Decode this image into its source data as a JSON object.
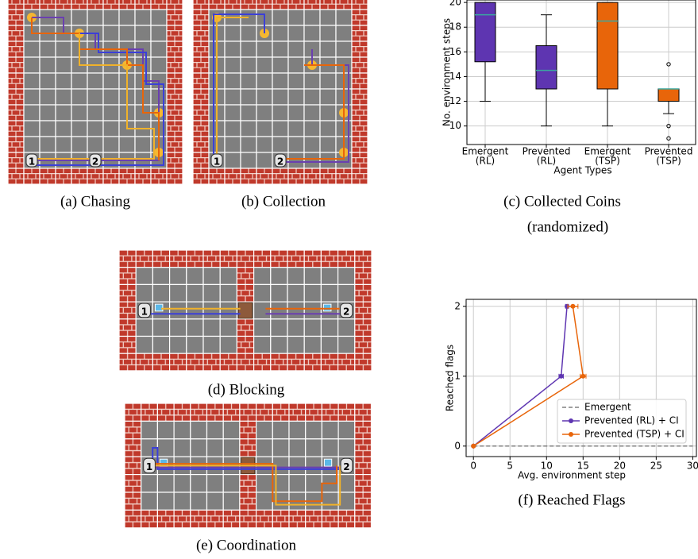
{
  "agent_ids": [
    "1",
    "2"
  ],
  "captions": {
    "a": "(a) Chasing",
    "b": "(b) Collection",
    "c": [
      "(c) Collected Coins",
      "(randomized)"
    ],
    "d": "(d) Blocking",
    "e": "(e) Coordination",
    "f": "(f) Reached Flags"
  },
  "chart_data": [
    {
      "type": "box",
      "ylabel": "No. environment steps",
      "xlabel": "Agent Types",
      "categories": [
        [
          "Emergent",
          "(RL)"
        ],
        [
          "Prevented",
          "(RL)"
        ],
        [
          "Emergent",
          "(TSP)"
        ],
        [
          "Prevented",
          "(TSP)"
        ]
      ],
      "colors": [
        "#5e35b1",
        "#5e35b1",
        "#e8650a",
        "#e8650a"
      ],
      "median_color": "#3aa8a0",
      "boxes": [
        {
          "whislo": 12,
          "q1": 15.2,
          "med": 19,
          "q3": 20,
          "whishi": 20,
          "fliers": []
        },
        {
          "whislo": 10,
          "q1": 13,
          "med": 14.5,
          "q3": 16.5,
          "whishi": 19,
          "fliers": []
        },
        {
          "whislo": 10,
          "q1": 13,
          "med": 18.5,
          "q3": 20,
          "whishi": 20,
          "fliers": []
        },
        {
          "whislo": 11,
          "q1": 12,
          "med": 13,
          "q3": 13,
          "whishi": 13,
          "fliers": [
            15,
            10,
            9
          ]
        }
      ],
      "ylim": [
        8.5,
        20.2
      ],
      "yticks": [
        10,
        12,
        14,
        16,
        18,
        20
      ],
      "grid": true
    },
    {
      "type": "line",
      "xlabel": "Avg. environment step",
      "ylabel": "Reached flags",
      "xlim": [
        -1,
        30.5
      ],
      "ylim": [
        -0.15,
        2.1
      ],
      "xticks": [
        0,
        5,
        10,
        15,
        20,
        25,
        30
      ],
      "yticks": [
        0,
        1,
        2
      ],
      "grid": true,
      "legend": "lower right",
      "series": [
        {
          "name": "Emergent",
          "color": "#808080",
          "dashed": true,
          "x": [
            0,
            30
          ],
          "y": [
            0,
            0
          ]
        },
        {
          "name": "Prevented (RL) + CI",
          "color": "#5e35b1",
          "x": [
            0,
            12,
            12.8
          ],
          "y": [
            0,
            1,
            2
          ],
          "xerr": [
            0,
            0.3,
            0.2
          ]
        },
        {
          "name": "Prevented (TSP) + CI",
          "color": "#e8650a",
          "x": [
            0,
            15,
            13.6
          ],
          "y": [
            0,
            1,
            2
          ],
          "xerr": [
            0,
            0.4,
            0.7
          ]
        }
      ]
    }
  ]
}
